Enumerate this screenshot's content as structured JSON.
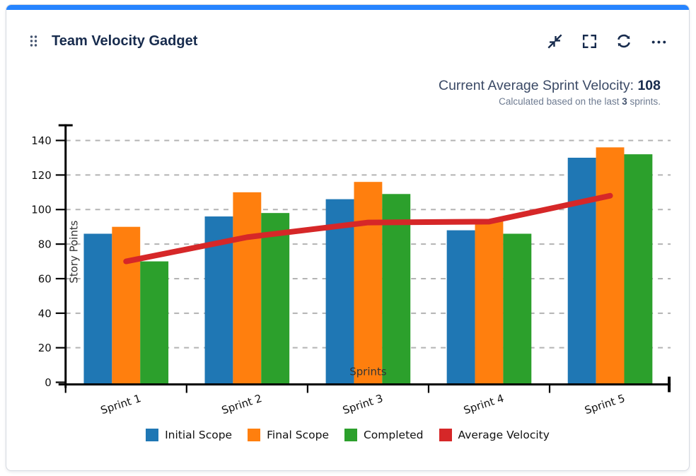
{
  "header": {
    "title": "Team Velocity Gadget",
    "accent_color": "#2684ff",
    "icons": [
      "drag-handle-icon",
      "collapse-icon",
      "fullscreen-icon",
      "refresh-icon",
      "more-icon"
    ],
    "icon_color": "#172b4d"
  },
  "summary": {
    "label": "Current Average Sprint Velocity: ",
    "value": "108",
    "note_prefix": "Calculated based on the last ",
    "note_value": "3",
    "note_suffix": " sprints."
  },
  "chart_data": {
    "type": "bar",
    "categories": [
      "Sprint 1",
      "Sprint 2",
      "Sprint 3",
      "Sprint 4",
      "Sprint 5"
    ],
    "series": [
      {
        "name": "Initial Scope",
        "type": "bar",
        "color": "#1f77b4",
        "values": [
          86,
          96,
          106,
          88,
          130
        ]
      },
      {
        "name": "Final Scope",
        "type": "bar",
        "color": "#ff7f0e",
        "values": [
          90,
          110,
          116,
          94,
          136
        ]
      },
      {
        "name": "Completed",
        "type": "bar",
        "color": "#2ca02c",
        "values": [
          70,
          98,
          109,
          86,
          132
        ]
      },
      {
        "name": "Average Velocity",
        "type": "line",
        "color": "#d62728",
        "values": [
          70,
          84,
          92.5,
          93,
          108
        ]
      }
    ],
    "xlabel": "Sprints",
    "ylabel": "Story Points",
    "ylim": [
      0,
      150
    ],
    "yticks": [
      0,
      20,
      40,
      60,
      80,
      100,
      120,
      140
    ],
    "grid": true,
    "grid_style": "dashed",
    "legend_position": "bottom"
  }
}
